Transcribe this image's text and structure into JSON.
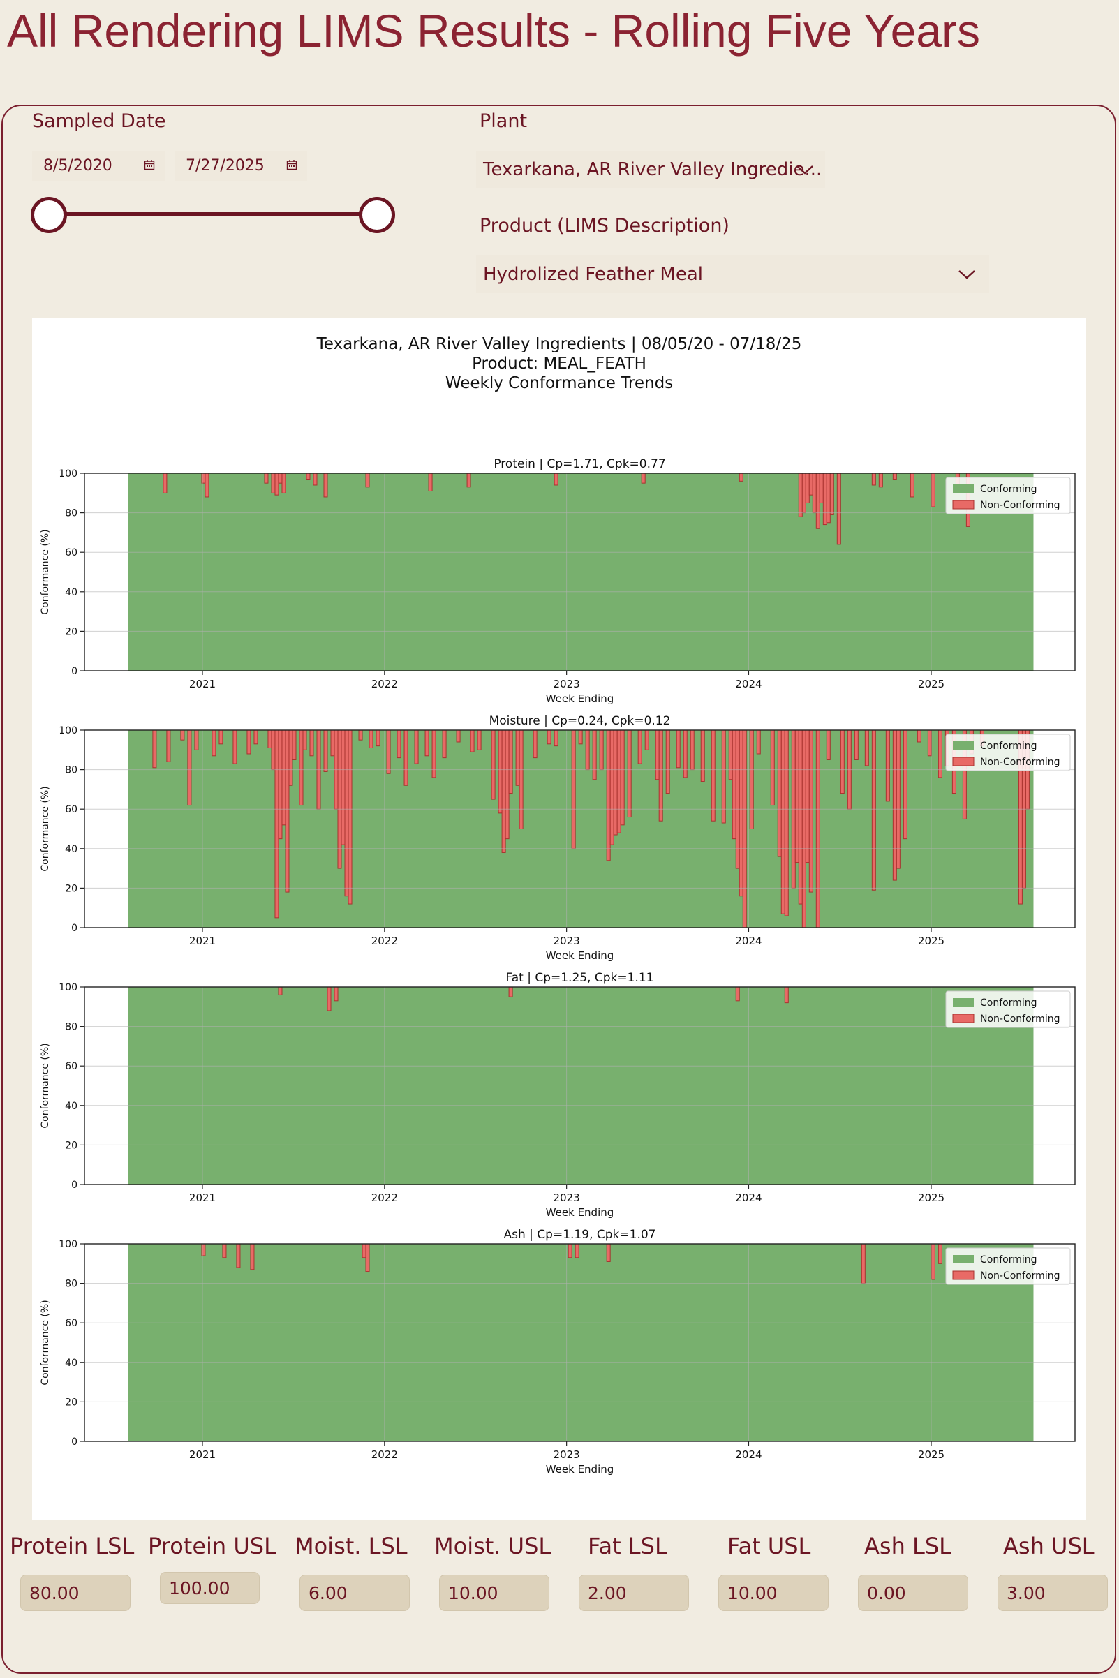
{
  "page": {
    "title": "All Rendering LIMS Results - Rolling Five Years"
  },
  "filters": {
    "sampled_date": {
      "label": "Sampled Date",
      "start": "8/5/2020",
      "end": "7/27/2025",
      "slider_start_fraction": 0,
      "slider_end_fraction": 1
    },
    "plant": {
      "label": "Plant",
      "selected": "Texarkana, AR River Valley Ingredie..."
    },
    "product": {
      "label": "Product (LIMS Description)",
      "selected": "Hydrolized Feather Meal"
    }
  },
  "icons": {
    "calendar": "calendar-icon",
    "dropdown": "chevron-down-icon"
  },
  "colors": {
    "title": "#8b2332",
    "accent": "#6b1523",
    "conforming": "#78b06e",
    "non_conforming": "#e86a66"
  },
  "chart_data": {
    "type": "area",
    "title_lines": [
      "Texarkana, AR River Valley Ingredients | 08/05/20 - 07/18/25",
      "Product: MEAL_FEATH",
      "Weekly Conformance Trends"
    ],
    "xlabel": "Week Ending",
    "ylabel": "Conformance (%)",
    "x_ticks": [
      "2021",
      "2022",
      "2023",
      "2024",
      "2025"
    ],
    "y_ticks": [
      0,
      20,
      40,
      60,
      80,
      100
    ],
    "ylim": [
      0,
      100
    ],
    "date_range": [
      "2020-08-05",
      "2025-07-18"
    ],
    "legend": {
      "position": "top-right",
      "entries": [
        "Conforming",
        "Non-Conforming"
      ]
    },
    "grid": true,
    "panels": [
      {
        "title": "Protein | Cp=1.71, Cpk=0.77",
        "dips": [
          [
            "2020-10-18",
            90
          ],
          [
            "2021-01-03",
            95
          ],
          [
            "2021-01-10",
            88
          ],
          [
            "2021-05-09",
            95
          ],
          [
            "2021-05-23",
            90
          ],
          [
            "2021-05-30",
            89
          ],
          [
            "2021-06-06",
            95
          ],
          [
            "2021-06-13",
            90
          ],
          [
            "2021-08-01",
            97
          ],
          [
            "2021-08-15",
            94
          ],
          [
            "2021-09-05",
            88
          ],
          [
            "2021-11-28",
            93
          ],
          [
            "2022-04-03",
            91
          ],
          [
            "2022-06-19",
            93
          ],
          [
            "2022-12-11",
            94
          ],
          [
            "2023-06-04",
            95
          ],
          [
            "2023-12-17",
            96
          ],
          [
            "2024-04-14",
            78
          ],
          [
            "2024-04-21",
            80
          ],
          [
            "2024-04-28",
            85
          ],
          [
            "2024-05-05",
            89
          ],
          [
            "2024-05-12",
            80
          ],
          [
            "2024-05-19",
            72
          ],
          [
            "2024-05-26",
            85
          ],
          [
            "2024-06-02",
            74
          ],
          [
            "2024-06-09",
            75
          ],
          [
            "2024-06-16",
            79
          ],
          [
            "2024-06-30",
            64
          ],
          [
            "2024-09-08",
            94
          ],
          [
            "2024-09-22",
            93
          ],
          [
            "2024-10-20",
            97
          ],
          [
            "2024-11-24",
            88
          ],
          [
            "2025-01-05",
            83
          ],
          [
            "2025-02-23",
            92
          ],
          [
            "2025-03-16",
            73
          ]
        ]
      },
      {
        "title": "Moisture | Cp=0.24, Cpk=0.12",
        "dips": [
          [
            "2020-09-27",
            81
          ],
          [
            "2020-10-25",
            84
          ],
          [
            "2020-11-22",
            95
          ],
          [
            "2020-12-06",
            62
          ],
          [
            "2020-12-20",
            90
          ],
          [
            "2021-01-24",
            87
          ],
          [
            "2021-02-07",
            93
          ],
          [
            "2021-03-07",
            83
          ],
          [
            "2021-04-04",
            88
          ],
          [
            "2021-04-18",
            93
          ],
          [
            "2021-05-16",
            91
          ],
          [
            "2021-05-23",
            80
          ],
          [
            "2021-05-30",
            5
          ],
          [
            "2021-06-06",
            45
          ],
          [
            "2021-06-13",
            52
          ],
          [
            "2021-06-20",
            18
          ],
          [
            "2021-06-27",
            72
          ],
          [
            "2021-07-04",
            85
          ],
          [
            "2021-07-18",
            62
          ],
          [
            "2021-07-25",
            90
          ],
          [
            "2021-08-08",
            87
          ],
          [
            "2021-08-22",
            60
          ],
          [
            "2021-09-05",
            79
          ],
          [
            "2021-09-19",
            87
          ],
          [
            "2021-09-26",
            60
          ],
          [
            "2021-10-03",
            30
          ],
          [
            "2021-10-10",
            42
          ],
          [
            "2021-10-17",
            16
          ],
          [
            "2021-10-24",
            12
          ],
          [
            "2021-11-14",
            95
          ],
          [
            "2021-12-05",
            91
          ],
          [
            "2021-12-19",
            92
          ],
          [
            "2022-01-09",
            78
          ],
          [
            "2022-01-30",
            86
          ],
          [
            "2022-02-13",
            72
          ],
          [
            "2022-03-06",
            83
          ],
          [
            "2022-03-27",
            87
          ],
          [
            "2022-04-10",
            76
          ],
          [
            "2022-05-01",
            86
          ],
          [
            "2022-05-29",
            94
          ],
          [
            "2022-06-26",
            89
          ],
          [
            "2022-07-10",
            90
          ],
          [
            "2022-08-07",
            65
          ],
          [
            "2022-08-21",
            58
          ],
          [
            "2022-08-28",
            38
          ],
          [
            "2022-09-04",
            45
          ],
          [
            "2022-09-11",
            68
          ],
          [
            "2022-09-25",
            72
          ],
          [
            "2022-10-02",
            50
          ],
          [
            "2022-10-30",
            86
          ],
          [
            "2022-11-27",
            93
          ],
          [
            "2022-12-11",
            92
          ],
          [
            "2023-01-15",
            40
          ],
          [
            "2023-01-29",
            93
          ],
          [
            "2023-02-12",
            80
          ],
          [
            "2023-02-26",
            75
          ],
          [
            "2023-03-12",
            80
          ],
          [
            "2023-03-26",
            34
          ],
          [
            "2023-04-02",
            42
          ],
          [
            "2023-04-09",
            47
          ],
          [
            "2023-04-16",
            48
          ],
          [
            "2023-04-23",
            52
          ],
          [
            "2023-05-07",
            56
          ],
          [
            "2023-05-28",
            83
          ],
          [
            "2023-06-11",
            90
          ],
          [
            "2023-07-02",
            75
          ],
          [
            "2023-07-09",
            54
          ],
          [
            "2023-07-23",
            68
          ],
          [
            "2023-08-13",
            81
          ],
          [
            "2023-08-27",
            76
          ],
          [
            "2023-09-10",
            80
          ],
          [
            "2023-10-01",
            74
          ],
          [
            "2023-10-22",
            54
          ],
          [
            "2023-11-12",
            53
          ],
          [
            "2023-11-26",
            75
          ],
          [
            "2023-12-03",
            45
          ],
          [
            "2023-12-10",
            30
          ],
          [
            "2023-12-17",
            16
          ],
          [
            "2023-12-24",
            0
          ],
          [
            "2024-01-07",
            50
          ],
          [
            "2024-01-21",
            88
          ],
          [
            "2024-02-18",
            62
          ],
          [
            "2024-03-03",
            36
          ],
          [
            "2024-03-10",
            7
          ],
          [
            "2024-03-17",
            6
          ],
          [
            "2024-03-31",
            20
          ],
          [
            "2024-04-07",
            33
          ],
          [
            "2024-04-14",
            12
          ],
          [
            "2024-04-21",
            0
          ],
          [
            "2024-04-28",
            33
          ],
          [
            "2024-05-05",
            18
          ],
          [
            "2024-05-19",
            0
          ],
          [
            "2024-06-09",
            85
          ],
          [
            "2024-07-07",
            68
          ],
          [
            "2024-07-21",
            60
          ],
          [
            "2024-08-04",
            85
          ],
          [
            "2024-08-25",
            82
          ],
          [
            "2024-09-08",
            19
          ],
          [
            "2024-10-06",
            64
          ],
          [
            "2024-10-20",
            24
          ],
          [
            "2024-10-27",
            30
          ],
          [
            "2024-11-10",
            45
          ],
          [
            "2024-12-08",
            94
          ],
          [
            "2024-12-29",
            87
          ],
          [
            "2025-01-19",
            76
          ],
          [
            "2025-02-02",
            82
          ],
          [
            "2025-02-16",
            68
          ],
          [
            "2025-03-09",
            55
          ],
          [
            "2025-03-23",
            88
          ],
          [
            "2025-04-13",
            92
          ],
          [
            "2025-06-29",
            12
          ],
          [
            "2025-07-06",
            20
          ],
          [
            "2025-07-13",
            60
          ]
        ]
      },
      {
        "title": "Fat | Cp=1.25, Cpk=1.11",
        "dips": [
          [
            "2021-06-06",
            96
          ],
          [
            "2021-09-12",
            88
          ],
          [
            "2021-09-26",
            93
          ],
          [
            "2022-09-11",
            95
          ],
          [
            "2023-12-10",
            93
          ],
          [
            "2024-03-17",
            92
          ]
        ]
      },
      {
        "title": "Ash | Cp=1.19, Cpk=1.07",
        "dips": [
          [
            "2021-01-03",
            94
          ],
          [
            "2021-02-14",
            93
          ],
          [
            "2021-03-14",
            88
          ],
          [
            "2021-04-11",
            87
          ],
          [
            "2021-11-21",
            93
          ],
          [
            "2021-11-28",
            86
          ],
          [
            "2023-01-08",
            93
          ],
          [
            "2023-01-22",
            93
          ],
          [
            "2023-03-26",
            91
          ],
          [
            "2024-08-18",
            80
          ],
          [
            "2025-01-05",
            82
          ],
          [
            "2025-01-19",
            90
          ]
        ]
      }
    ]
  },
  "spec_limits": [
    {
      "label": "Protein LSL",
      "value": "80.00"
    },
    {
      "label": "Protein USL",
      "value": "100.00"
    },
    {
      "label": "Moist. LSL",
      "value": "6.00"
    },
    {
      "label": "Moist. USL",
      "value": "10.00"
    },
    {
      "label": "Fat LSL",
      "value": "2.00"
    },
    {
      "label": "Fat USL",
      "value": "10.00"
    },
    {
      "label": "Ash LSL",
      "value": "0.00"
    },
    {
      "label": "Ash USL",
      "value": "3.00"
    }
  ]
}
